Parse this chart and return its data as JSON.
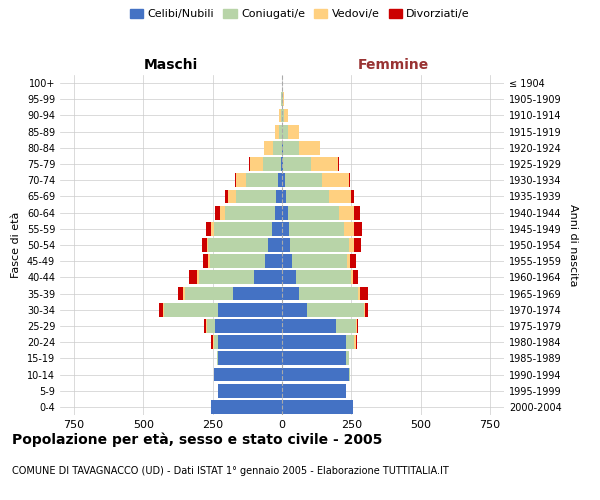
{
  "age_groups": [
    "0-4",
    "5-9",
    "10-14",
    "15-19",
    "20-24",
    "25-29",
    "30-34",
    "35-39",
    "40-44",
    "45-49",
    "50-54",
    "55-59",
    "60-64",
    "65-69",
    "70-74",
    "75-79",
    "80-84",
    "85-89",
    "90-94",
    "95-99",
    "100+"
  ],
  "birth_years": [
    "2000-2004",
    "1995-1999",
    "1990-1994",
    "1985-1989",
    "1980-1984",
    "1975-1979",
    "1970-1974",
    "1965-1969",
    "1960-1964",
    "1955-1959",
    "1950-1954",
    "1945-1949",
    "1940-1944",
    "1935-1939",
    "1930-1934",
    "1925-1929",
    "1920-1924",
    "1915-1919",
    "1910-1914",
    "1905-1909",
    "≤ 1904"
  ],
  "male": {
    "celibi": [
      255,
      230,
      245,
      230,
      230,
      240,
      230,
      175,
      100,
      60,
      50,
      35,
      25,
      20,
      15,
      5,
      1,
      0,
      0,
      0,
      0
    ],
    "coniugati": [
      0,
      0,
      0,
      5,
      15,
      30,
      195,
      175,
      200,
      200,
      215,
      210,
      180,
      145,
      115,
      65,
      30,
      10,
      5,
      2,
      0
    ],
    "vedovi": [
      0,
      0,
      0,
      0,
      5,
      5,
      5,
      5,
      5,
      5,
      5,
      10,
      20,
      30,
      35,
      45,
      35,
      15,
      5,
      2,
      0
    ],
    "divorziati": [
      0,
      0,
      0,
      0,
      5,
      5,
      15,
      20,
      30,
      20,
      20,
      20,
      15,
      10,
      5,
      5,
      0,
      0,
      0,
      0,
      0
    ]
  },
  "female": {
    "nubili": [
      255,
      230,
      240,
      230,
      230,
      195,
      90,
      60,
      50,
      35,
      30,
      25,
      20,
      15,
      10,
      5,
      2,
      1,
      0,
      0,
      0
    ],
    "coniugate": [
      0,
      0,
      5,
      10,
      30,
      70,
      205,
      215,
      200,
      200,
      210,
      200,
      185,
      155,
      135,
      100,
      60,
      20,
      8,
      2,
      0
    ],
    "vedove": [
      0,
      0,
      0,
      0,
      5,
      5,
      5,
      5,
      5,
      10,
      20,
      35,
      55,
      80,
      95,
      95,
      75,
      40,
      15,
      5,
      0
    ],
    "divorziate": [
      0,
      0,
      0,
      0,
      5,
      5,
      10,
      30,
      20,
      20,
      25,
      30,
      20,
      10,
      5,
      5,
      0,
      0,
      0,
      0,
      0
    ]
  },
  "colors": {
    "celibi": "#4472c4",
    "coniugati": "#b8d4a8",
    "vedovi": "#ffd080",
    "divorziati": "#cc0000"
  },
  "legend_labels": [
    "Celibi/Nubili",
    "Coniugati/e",
    "Vedovi/e",
    "Divorziati/e"
  ],
  "title": "Popolazione per età, sesso e stato civile - 2005",
  "subtitle": "COMUNE DI TAVAGNACCO (UD) - Dati ISTAT 1° gennaio 2005 - Elaborazione TUTTITALIA.IT",
  "maschi_label": "Maschi",
  "femmine_label": "Femmine",
  "ylabel_left": "Fasce di età",
  "ylabel_right": "Anni di nascita",
  "xticks": [
    -750,
    -500,
    -250,
    0,
    250,
    500,
    750
  ],
  "xlim": 800,
  "background_color": "#ffffff",
  "grid_color": "#cccccc"
}
